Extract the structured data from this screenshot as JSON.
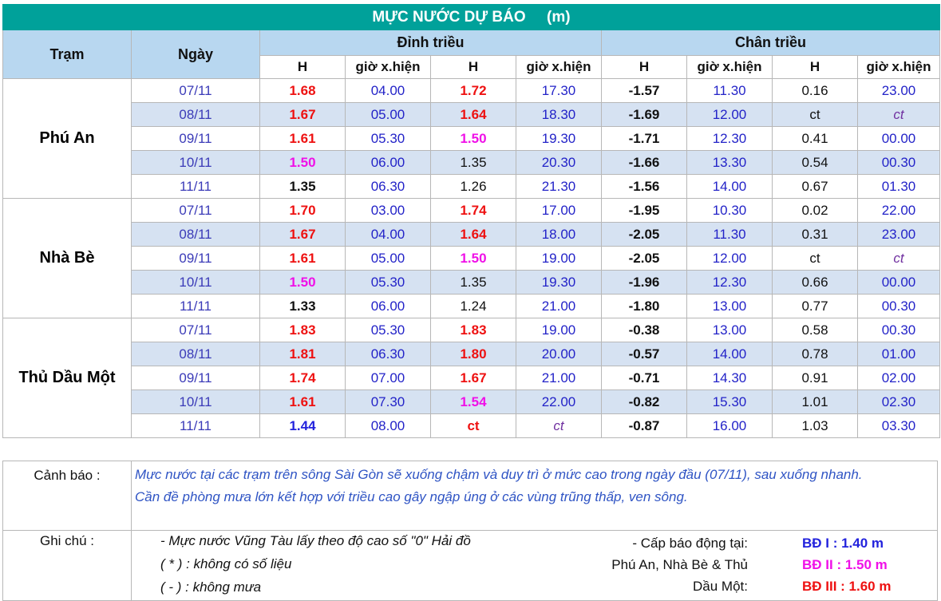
{
  "title": "MỰC NƯỚC DỰ BÁO     (m)",
  "headers": {
    "station": "Trạm",
    "date": "Ngày",
    "high_tide": "Đỉnh triều",
    "low_tide": "Chân triều",
    "h": "H",
    "time": "giờ x.hiện"
  },
  "stations": [
    {
      "name": "Phú An",
      "rows": [
        [
          "07/11",
          "1.68",
          "04.00",
          "1.72",
          "17.30",
          "-1.57",
          "11.30",
          "0.16",
          "23.00"
        ],
        [
          "08/11",
          "1.67",
          "05.00",
          "1.64",
          "18.30",
          "-1.69",
          "12.00",
          "ct",
          "ct"
        ],
        [
          "09/11",
          "1.61",
          "05.30",
          "1.50",
          "19.30",
          "-1.71",
          "12.30",
          "0.41",
          "00.00"
        ],
        [
          "10/11",
          "1.50",
          "06.00",
          "1.35",
          "20.30",
          "-1.66",
          "13.30",
          "0.54",
          "00.30"
        ],
        [
          "11/11",
          "1.35",
          "06.30",
          "1.26",
          "21.30",
          "-1.56",
          "14.00",
          "0.67",
          "01.30"
        ]
      ]
    },
    {
      "name": "Nhà Bè",
      "rows": [
        [
          "07/11",
          "1.70",
          "03.00",
          "1.74",
          "17.00",
          "-1.95",
          "10.30",
          "0.02",
          "22.00"
        ],
        [
          "08/11",
          "1.67",
          "04.00",
          "1.64",
          "18.00",
          "-2.05",
          "11.30",
          "0.31",
          "23.00"
        ],
        [
          "09/11",
          "1.61",
          "05.00",
          "1.50",
          "19.00",
          "-2.05",
          "12.00",
          "ct",
          "ct"
        ],
        [
          "10/11",
          "1.50",
          "05.30",
          "1.35",
          "19.30",
          "-1.96",
          "12.30",
          "0.66",
          "00.00"
        ],
        [
          "11/11",
          "1.33",
          "06.00",
          "1.24",
          "21.00",
          "-1.80",
          "13.00",
          "0.77",
          "00.30"
        ]
      ]
    },
    {
      "name": "Thủ Dầu Một",
      "rows": [
        [
          "07/11",
          "1.83",
          "05.30",
          "1.83",
          "19.00",
          "-0.38",
          "13.00",
          "0.58",
          "00.30"
        ],
        [
          "08/11",
          "1.81",
          "06.30",
          "1.80",
          "20.00",
          "-0.57",
          "14.00",
          "0.78",
          "01.00"
        ],
        [
          "09/11",
          "1.74",
          "07.00",
          "1.67",
          "21.00",
          "-0.71",
          "14.30",
          "0.91",
          "02.00"
        ],
        [
          "10/11",
          "1.61",
          "07.30",
          "1.54",
          "22.00",
          "-0.82",
          "15.30",
          "1.01",
          "02.30"
        ],
        [
          "11/11",
          "1.44",
          "08.00",
          "ct",
          "ct",
          "-0.87",
          "16.00",
          "1.03",
          "03.30"
        ]
      ]
    }
  ],
  "warning": {
    "label": "Cảnh báo :",
    "line1": "Mực nước tại các trạm trên sông Sài Gòn sẽ xuống chậm và duy trì ở mức cao trong ngày đầu (07/11), sau xuống nhanh.",
    "line2": "Cần đề phòng mưa lớn kết hợp với triều cao gây ngập úng ở các vùng trũng thấp, ven sông."
  },
  "notes": {
    "label": "Ghi chú :",
    "line1": "- Mực nước Vũng Tàu lấy theo độ cao số \"0\" Hải đồ",
    "line2": "( * ) :  không có số liệu",
    "line3": "( - )  :   không mưa",
    "alarm1": "- Cấp báo động tại:",
    "alarm2": "Phú An, Nhà Bè & Thủ",
    "alarm3": "Dầu Một:",
    "levels": [
      {
        "label": "BĐ I   :   1.40 m",
        "color": "#2222dd"
      },
      {
        "label": "BĐ II  :  1.50 m",
        "color": "#f010e8"
      },
      {
        "label": "BĐ III  :  1.60 m",
        "color": "#ee1111"
      }
    ]
  }
}
